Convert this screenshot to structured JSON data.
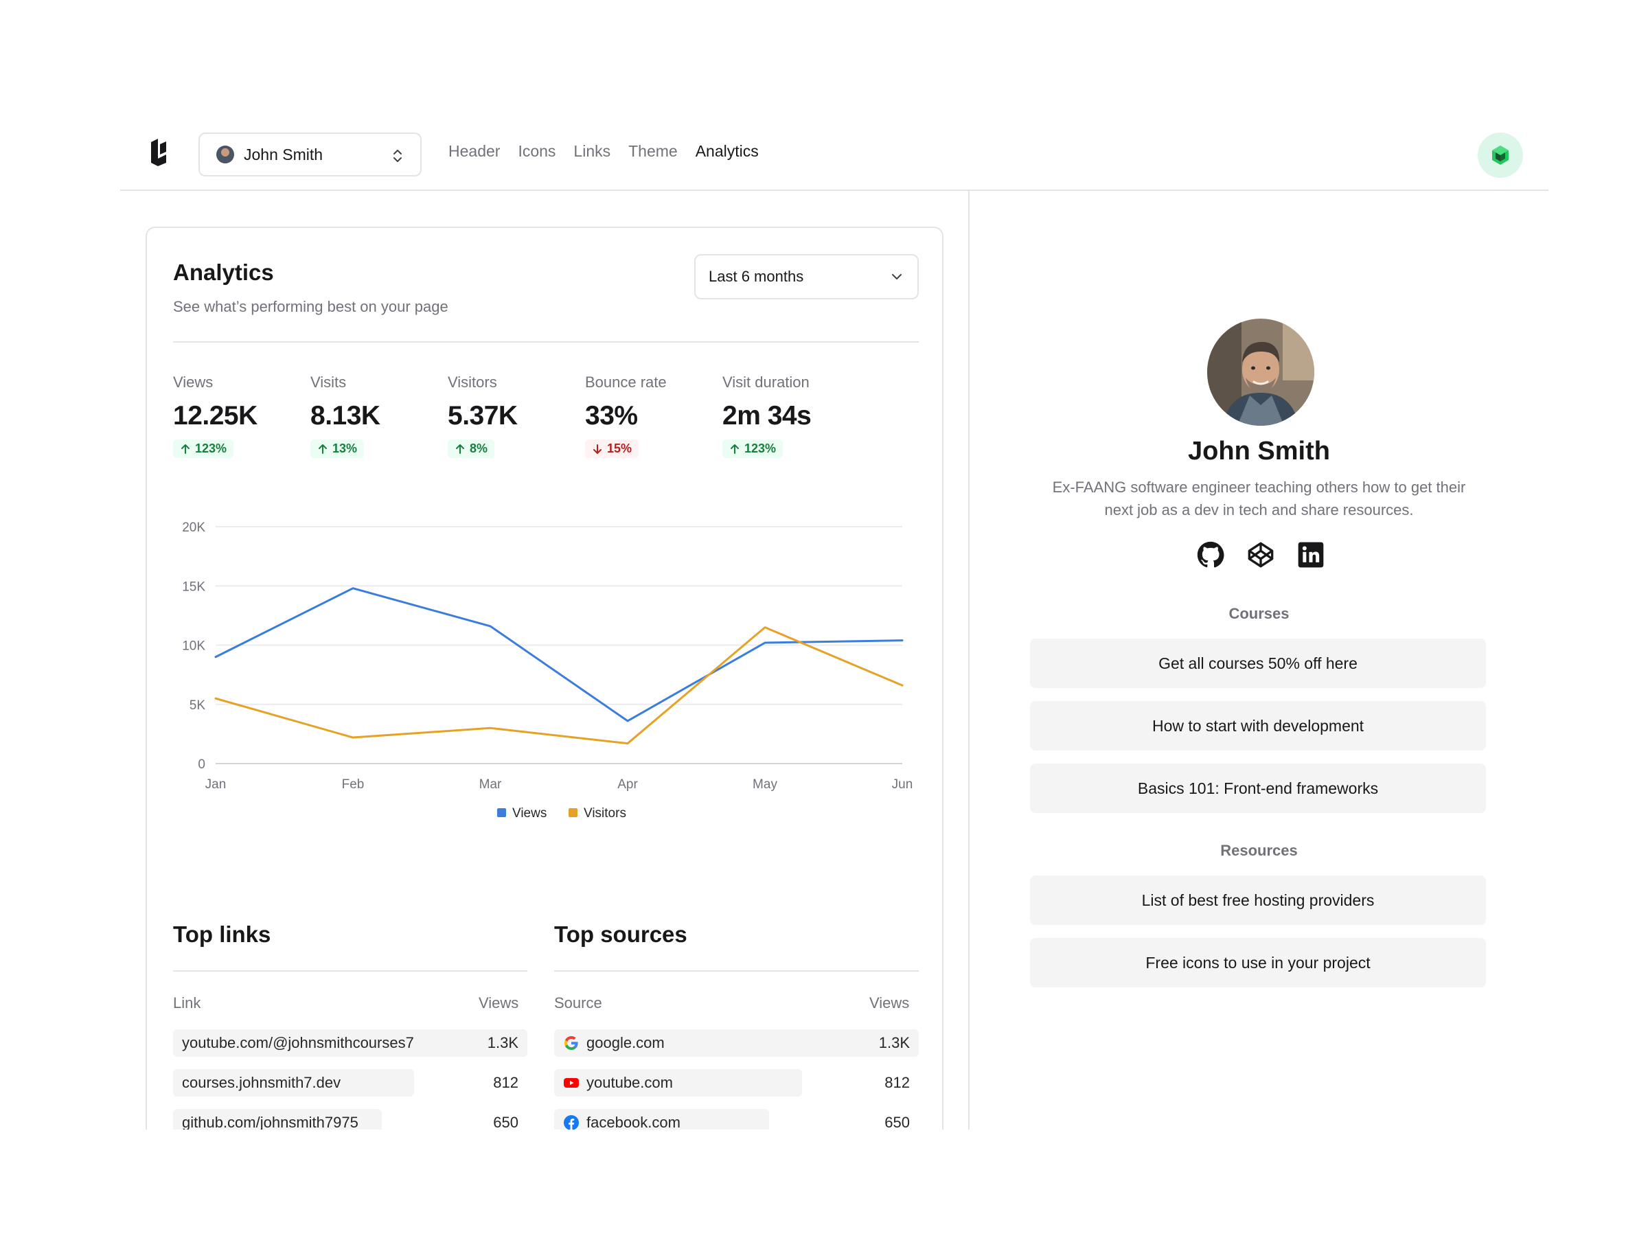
{
  "topbar": {
    "profile_name": "John Smith",
    "nav": [
      {
        "label": "Header"
      },
      {
        "label": "Icons"
      },
      {
        "label": "Links"
      },
      {
        "label": "Theme"
      },
      {
        "label": "Analytics"
      }
    ],
    "active_nav": "Analytics"
  },
  "analytics": {
    "title": "Analytics",
    "subtitle": "See what’s performing best on your page",
    "range": "Last 6 months",
    "metrics": [
      {
        "label": "Views",
        "value": "12.25K",
        "delta": "123%",
        "direction": "up"
      },
      {
        "label": "Visits",
        "value": "8.13K",
        "delta": "13%",
        "direction": "up"
      },
      {
        "label": "Visitors",
        "value": "5.37K",
        "delta": "8%",
        "direction": "up"
      },
      {
        "label": "Bounce rate",
        "value": "33%",
        "delta": "15%",
        "direction": "down"
      },
      {
        "label": "Visit duration",
        "value": "2m 34s",
        "delta": "123%",
        "direction": "up"
      }
    ]
  },
  "chart_data": {
    "type": "line",
    "categories": [
      "Jan",
      "Feb",
      "Mar",
      "Apr",
      "May",
      "Jun"
    ],
    "y_tick_labels": [
      "0",
      "5K",
      "10K",
      "15K",
      "20K"
    ],
    "ylim": [
      0,
      20000
    ],
    "grid": true,
    "legend_position": "bottom-center",
    "series": [
      {
        "name": "Views",
        "color": "#3b7ddd",
        "values": [
          9000,
          14800,
          11600,
          3600,
          10200,
          10400
        ]
      },
      {
        "name": "Visitors",
        "color": "#e5a224",
        "values": [
          5500,
          2200,
          3000,
          1700,
          11500,
          6600
        ]
      }
    ]
  },
  "top_links": {
    "title": "Top links",
    "col_link": "Link",
    "col_views": "Views",
    "rows": [
      {
        "label": "youtube.com/@johnsmithcourses7",
        "value": "1.3K",
        "share": 1.0
      },
      {
        "label": "courses.johnsmith7.dev",
        "value": "812",
        "share": 0.68
      },
      {
        "label": "github.com/johnsmith7975",
        "value": "650",
        "share": 0.59
      }
    ]
  },
  "top_sources": {
    "title": "Top sources",
    "col_source": "Source",
    "col_views": "Views",
    "rows": [
      {
        "label": "google.com",
        "value": "1.3K",
        "icon": "google-icon",
        "share": 1.0
      },
      {
        "label": "youtube.com",
        "value": "812",
        "icon": "youtube-icon",
        "share": 0.68
      },
      {
        "label": "facebook.com",
        "value": "650",
        "icon": "facebook-icon",
        "share": 0.59
      }
    ]
  },
  "preview": {
    "name": "John Smith",
    "bio": "Ex-FAANG software engineer teaching others how to get their next job as a dev in tech and share resources.",
    "socials": [
      "github-icon",
      "codepen-icon",
      "linkedin-icon"
    ],
    "courses_title": "Courses",
    "courses": [
      {
        "label": "Get all courses 50% off here"
      },
      {
        "label": "How to start with development"
      },
      {
        "label": "Basics 101: Front-end frameworks"
      }
    ],
    "resources_title": "Resources",
    "resources": [
      {
        "label": "List of best free hosting providers"
      },
      {
        "label": "Free icons to use in your project"
      }
    ]
  }
}
